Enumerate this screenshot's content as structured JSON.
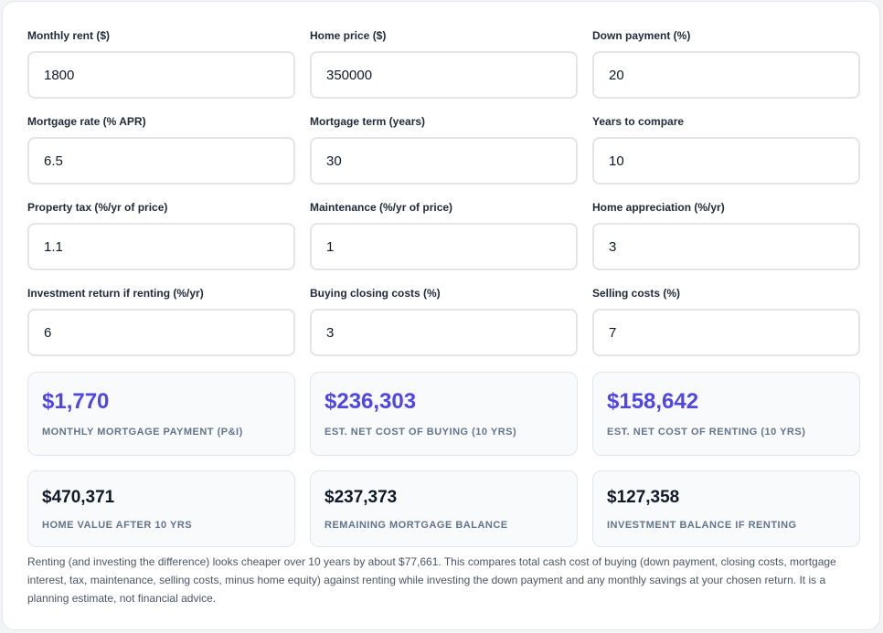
{
  "inputs": [
    {
      "label": "Monthly rent ($)",
      "value": "1800"
    },
    {
      "label": "Home price ($)",
      "value": "350000"
    },
    {
      "label": "Down payment (%)",
      "value": "20"
    },
    {
      "label": "Mortgage rate (% APR)",
      "value": "6.5"
    },
    {
      "label": "Mortgage term (years)",
      "value": "30"
    },
    {
      "label": "Years to compare",
      "value": "10"
    },
    {
      "label": "Property tax (%/yr of price)",
      "value": "1.1"
    },
    {
      "label": "Maintenance (%/yr of price)",
      "value": "1"
    },
    {
      "label": "Home appreciation (%/yr)",
      "value": "3"
    },
    {
      "label": "Investment return if renting (%/yr)",
      "value": "6"
    },
    {
      "label": "Buying closing costs (%)",
      "value": "3"
    },
    {
      "label": "Selling costs (%)",
      "value": "7"
    }
  ],
  "primary_results": [
    {
      "value": "$1,770",
      "caption": "Monthly mortgage payment (P&I)"
    },
    {
      "value": "$236,303",
      "caption": "Est. net cost of buying (10 yrs)"
    },
    {
      "value": "$158,642",
      "caption": "Est. net cost of renting (10 yrs)"
    }
  ],
  "secondary_results": [
    {
      "value": "$470,371",
      "caption": "Home value after 10 yrs"
    },
    {
      "value": "$237,373",
      "caption": "Remaining mortgage balance"
    },
    {
      "value": "$127,358",
      "caption": "Investment balance if renting"
    }
  ],
  "summary": "Renting (and investing the difference) looks cheaper over 10 years by about $77,661. This compares total cash cost of buying (down payment, closing costs, mortgage interest, tax, maintenance, selling costs, minus home equity) against renting while investing the down payment and any monthly savings at your chosen return. It is a planning estimate, not financial advice.",
  "colors": {
    "accent": "#4f46e5",
    "value_dark": "#111827",
    "caption": "#64748b",
    "card_bg": "#f8fafc"
  }
}
